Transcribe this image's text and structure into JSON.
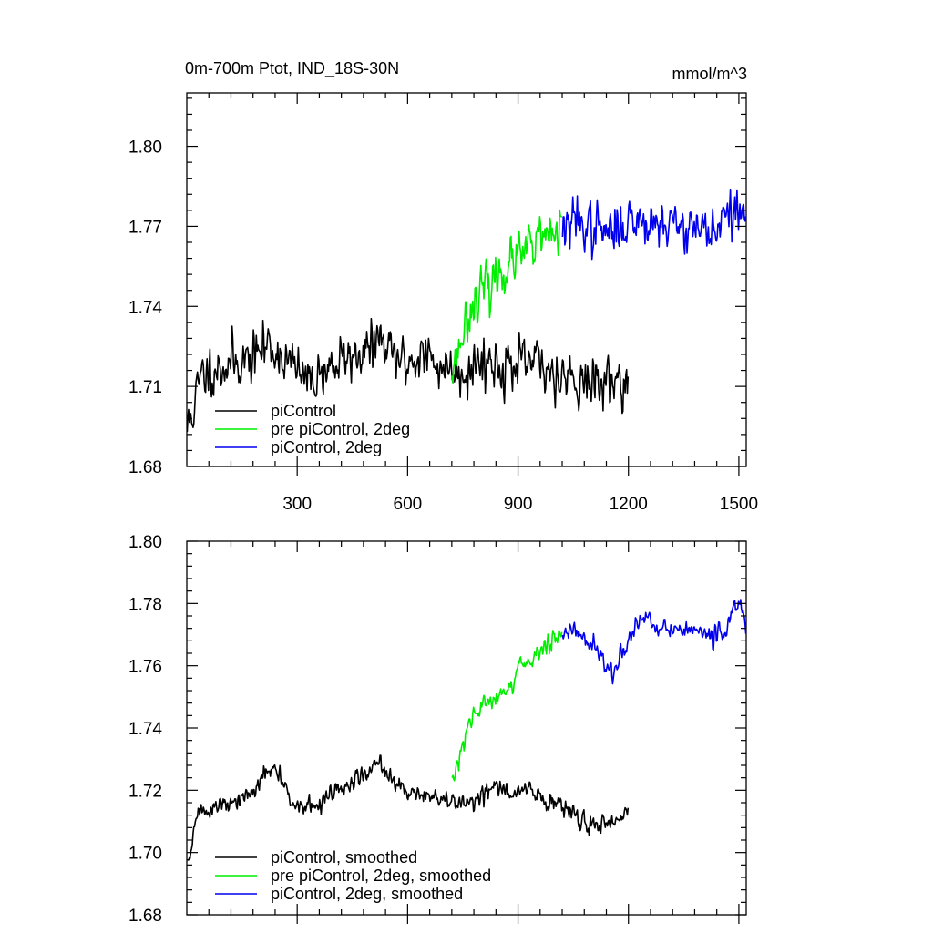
{
  "chart_data": [
    {
      "type": "line",
      "title": "0m-700m Ptot, IND_18S-30N",
      "units": "mmol/m^3",
      "xlim": [
        0,
        1520
      ],
      "ylim": [
        1.68,
        1.82
      ],
      "xticks": [
        300,
        600,
        900,
        1200,
        1500
      ],
      "xtick_labels": [
        "300",
        "600",
        "900",
        "1200",
        "1500"
      ],
      "yticks": [
        1.68,
        1.71,
        1.74,
        1.77,
        1.8
      ],
      "ytick_labels": [
        "1.68",
        "1.71",
        "1.74",
        "1.77",
        "1.80"
      ],
      "series": [
        {
          "name": "piControl",
          "color": "#000000",
          "x_range": [
            1,
            1200
          ],
          "anchors": [
            [
              1,
              1.694
            ],
            [
              20,
              1.703
            ],
            [
              40,
              1.714
            ],
            [
              80,
              1.717
            ],
            [
              130,
              1.719
            ],
            [
              180,
              1.721
            ],
            [
              220,
              1.726
            ],
            [
              260,
              1.721
            ],
            [
              300,
              1.716
            ],
            [
              330,
              1.712
            ],
            [
              370,
              1.716
            ],
            [
              420,
              1.719
            ],
            [
              460,
              1.722
            ],
            [
              500,
              1.724
            ],
            [
              520,
              1.728
            ],
            [
              560,
              1.721
            ],
            [
              600,
              1.719
            ],
            [
              640,
              1.722
            ],
            [
              680,
              1.718
            ],
            [
              720,
              1.717
            ],
            [
              760,
              1.716
            ],
            [
              800,
              1.72
            ],
            [
              850,
              1.718
            ],
            [
              900,
              1.717
            ],
            [
              940,
              1.719
            ],
            [
              980,
              1.716
            ],
            [
              1020,
              1.715
            ],
            [
              1060,
              1.713
            ],
            [
              1100,
              1.711
            ],
            [
              1150,
              1.712
            ],
            [
              1200,
              1.713
            ]
          ],
          "noise": 0.0065,
          "seed": 11
        },
        {
          "name": "pre piControl, 2deg",
          "color": "#00ee00",
          "x_range": [
            721,
            1020
          ],
          "anchors": [
            [
              721,
              1.718
            ],
            [
              730,
              1.72
            ],
            [
              750,
              1.73
            ],
            [
              770,
              1.74
            ],
            [
              800,
              1.745
            ],
            [
              830,
              1.749
            ],
            [
              860,
              1.754
            ],
            [
              900,
              1.758
            ],
            [
              940,
              1.762
            ],
            [
              980,
              1.766
            ],
            [
              1020,
              1.769
            ]
          ],
          "noise": 0.0065,
          "seed": 23
        },
        {
          "name": "piControl, 2deg",
          "color": "#0000ee",
          "x_range": [
            1021,
            1520
          ],
          "anchors": [
            [
              1021,
              1.77
            ],
            [
              1060,
              1.771
            ],
            [
              1100,
              1.77
            ],
            [
              1150,
              1.767
            ],
            [
              1200,
              1.772
            ],
            [
              1250,
              1.773
            ],
            [
              1300,
              1.771
            ],
            [
              1350,
              1.771
            ],
            [
              1400,
              1.769
            ],
            [
              1450,
              1.77
            ],
            [
              1490,
              1.776
            ],
            [
              1520,
              1.772
            ]
          ],
          "noise": 0.0065,
          "seed": 37
        }
      ]
    },
    {
      "type": "line",
      "xlim": [
        0,
        1520
      ],
      "ylim": [
        1.68,
        1.8
      ],
      "xticks": [
        300,
        600,
        900,
        1200,
        1500
      ],
      "yticks": [
        1.68,
        1.7,
        1.72,
        1.74,
        1.76,
        1.78,
        1.8
      ],
      "ytick_labels": [
        "1.68",
        "1.70",
        "1.72",
        "1.74",
        "1.76",
        "1.78",
        "1.80"
      ],
      "series": [
        {
          "name": "piControl, smoothed",
          "color": "#000000",
          "x_range": [
            1,
            1200
          ],
          "anchors": [
            [
              1,
              1.696
            ],
            [
              15,
              1.704
            ],
            [
              30,
              1.713
            ],
            [
              60,
              1.714
            ],
            [
              100,
              1.715
            ],
            [
              140,
              1.716
            ],
            [
              180,
              1.719
            ],
            [
              210,
              1.725
            ],
            [
              240,
              1.727
            ],
            [
              270,
              1.72
            ],
            [
              300,
              1.716
            ],
            [
              330,
              1.714
            ],
            [
              370,
              1.716
            ],
            [
              400,
              1.72
            ],
            [
              430,
              1.72
            ],
            [
              460,
              1.724
            ],
            [
              490,
              1.725
            ],
            [
              520,
              1.73
            ],
            [
              550,
              1.724
            ],
            [
              580,
              1.72
            ],
            [
              620,
              1.72
            ],
            [
              660,
              1.718
            ],
            [
              700,
              1.716
            ],
            [
              740,
              1.716
            ],
            [
              780,
              1.717
            ],
            [
              820,
              1.72
            ],
            [
              850,
              1.721
            ],
            [
              880,
              1.718
            ],
            [
              910,
              1.72
            ],
            [
              940,
              1.72
            ],
            [
              980,
              1.716
            ],
            [
              1020,
              1.715
            ],
            [
              1060,
              1.711
            ],
            [
              1100,
              1.709
            ],
            [
              1150,
              1.71
            ],
            [
              1200,
              1.713
            ]
          ],
          "noise": 0.0022,
          "seed": 51
        },
        {
          "name": "pre piControl, 2deg, smoothed",
          "color": "#00ee00",
          "x_range": [
            721,
            1020
          ],
          "anchors": [
            [
              721,
              1.722
            ],
            [
              740,
              1.729
            ],
            [
              760,
              1.738
            ],
            [
              780,
              1.744
            ],
            [
              800,
              1.746
            ],
            [
              830,
              1.75
            ],
            [
              860,
              1.752
            ],
            [
              880,
              1.752
            ],
            [
              900,
              1.76
            ],
            [
              930,
              1.762
            ],
            [
              960,
              1.765
            ],
            [
              990,
              1.768
            ],
            [
              1020,
              1.771
            ]
          ],
          "noise": 0.0022,
          "seed": 63
        },
        {
          "name": "piControl, 2deg, smoothed",
          "color": "#0000ee",
          "x_range": [
            1021,
            1520
          ],
          "anchors": [
            [
              1021,
              1.77
            ],
            [
              1050,
              1.772
            ],
            [
              1080,
              1.769
            ],
            [
              1110,
              1.766
            ],
            [
              1140,
              1.759
            ],
            [
              1160,
              1.757
            ],
            [
              1190,
              1.766
            ],
            [
              1220,
              1.773
            ],
            [
              1250,
              1.776
            ],
            [
              1280,
              1.772
            ],
            [
              1320,
              1.771
            ],
            [
              1360,
              1.772
            ],
            [
              1400,
              1.77
            ],
            [
              1440,
              1.769
            ],
            [
              1470,
              1.773
            ],
            [
              1500,
              1.781
            ],
            [
              1510,
              1.779
            ],
            [
              1520,
              1.771
            ]
          ],
          "noise": 0.0022,
          "seed": 77
        }
      ]
    }
  ]
}
